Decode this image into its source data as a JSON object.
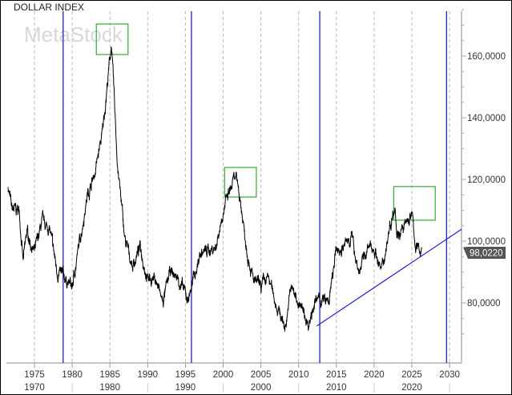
{
  "chart_data": {
    "type": "line",
    "title": "DOLLAR INDEX",
    "watermark": "MetaStock",
    "xlim": [
      1971.3,
      2031.6
    ],
    "ylim": [
      64,
      178
    ],
    "grid": "vertical dashed every 5 years",
    "y_ticks": [
      {
        "value": 80,
        "label": "80,0000"
      },
      {
        "value": 100,
        "label": "100,0000"
      },
      {
        "value": 120,
        "label": "120,0000"
      },
      {
        "value": 140,
        "label": "140,0000"
      },
      {
        "value": 160,
        "label": "160,0000"
      }
    ],
    "x_ticks": [
      1975,
      1980,
      1985,
      1990,
      1995,
      2000,
      2005,
      2010,
      2015,
      2020,
      2025,
      2030
    ],
    "x_tick_labels": [
      "1975",
      "1980",
      "1985",
      "1990",
      "1995",
      "2000",
      "2005",
      "2010",
      "2015",
      "2020",
      "2025",
      "2030"
    ],
    "decade_labels": [
      "1970",
      "1980",
      "1990",
      "2000",
      "2010",
      "2020"
    ],
    "decade_values": [
      1975,
      1985,
      1995,
      2005,
      2015,
      2025
    ],
    "series": [
      {
        "color": "#000000",
        "points": [
          [
            1971.5,
            118
          ],
          [
            1972.0,
            110
          ],
          [
            1973.0,
            110
          ],
          [
            1973.5,
            93
          ],
          [
            1974.0,
            103
          ],
          [
            1975.0,
            96
          ],
          [
            1976.0,
            106
          ],
          [
            1977.0,
            104
          ],
          [
            1978.0,
            90
          ],
          [
            1979.0,
            88
          ],
          [
            1980.0,
            85
          ],
          [
            1981.0,
            100
          ],
          [
            1982.0,
            115
          ],
          [
            1983.0,
            122
          ],
          [
            1984.0,
            135
          ],
          [
            1985.2,
            164
          ],
          [
            1986.0,
            125
          ],
          [
            1987.0,
            100
          ],
          [
            1988.0,
            92
          ],
          [
            1989.0,
            98
          ],
          [
            1990.0,
            88
          ],
          [
            1991.0,
            88
          ],
          [
            1992.0,
            80
          ],
          [
            1993.0,
            90
          ],
          [
            1994.0,
            88
          ],
          [
            1995.3,
            81
          ],
          [
            1996.0,
            87
          ],
          [
            1997.0,
            96
          ],
          [
            1998.0,
            97
          ],
          [
            1999.0,
            98
          ],
          [
            2000.0,
            110
          ],
          [
            2001.5,
            120
          ],
          [
            2002.0,
            118
          ],
          [
            2003.0,
            100
          ],
          [
            2004.0,
            87
          ],
          [
            2005.0,
            85
          ],
          [
            2006.0,
            88
          ],
          [
            2007.0,
            80
          ],
          [
            2008.2,
            72
          ],
          [
            2009.0,
            85
          ],
          [
            2010.0,
            80
          ],
          [
            2011.3,
            73
          ],
          [
            2012.0,
            80
          ],
          [
            2013.0,
            81
          ],
          [
            2014.0,
            80
          ],
          [
            2015.0,
            97
          ],
          [
            2016.0,
            98
          ],
          [
            2017.0,
            102
          ],
          [
            2018.0,
            90
          ],
          [
            2019.0,
            97
          ],
          [
            2020.0,
            98
          ],
          [
            2021.0,
            90
          ],
          [
            2022.0,
            104
          ],
          [
            2022.8,
            113
          ],
          [
            2023.0,
            103
          ],
          [
            2024.0,
            104
          ],
          [
            2025.0,
            109
          ],
          [
            2025.5,
            98
          ],
          [
            2026.0,
            97
          ],
          [
            2026.3,
            98.022
          ]
        ]
      }
    ],
    "last_value": {
      "value": 98.022,
      "label": "98,0220",
      "color": "#555555"
    },
    "vertical_lines": {
      "color": "#2222bb",
      "x": [
        1978.8,
        1995.8,
        2012.8,
        2029.6
      ]
    },
    "trendline": {
      "color": "#2222cc",
      "from": [
        2012.4,
        72.5
      ],
      "to": [
        2031.6,
        103.9
      ]
    },
    "boxes": {
      "color": "#33aa33",
      "items": [
        {
          "x": [
            1983.2,
            1987.4
          ],
          "y": [
            160.5,
            170.4
          ]
        },
        {
          "x": [
            2000.2,
            2004.4
          ],
          "y": [
            114.3,
            123.9
          ]
        },
        {
          "x": [
            2022.6,
            2028.1
          ],
          "y": [
            106.8,
            117.7
          ]
        }
      ]
    }
  }
}
